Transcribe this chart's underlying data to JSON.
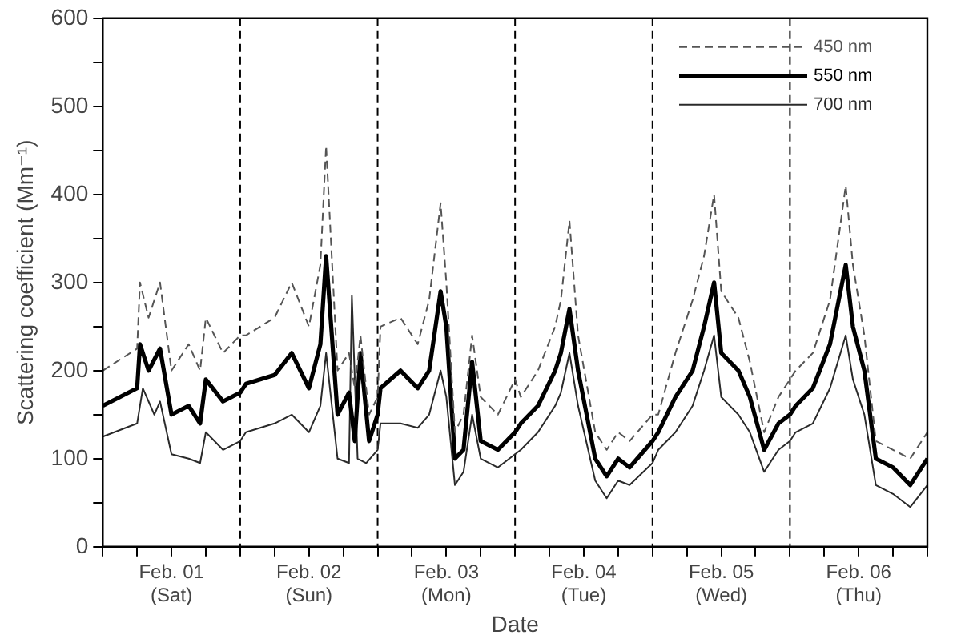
{
  "chart_data": {
    "type": "line",
    "xlabel": "Date",
    "ylabel": "Scattering coefficient (Mm⁻¹)",
    "xlim": [
      "--02-01T00:00",
      "--02-07T00:00"
    ],
    "ylim": [
      0,
      600
    ],
    "xticks": [
      {
        "value": "--02-01T00:00",
        "label": null
      },
      {
        "value": "--02-01T06:00",
        "label": null
      },
      {
        "value": "--02-01T12:00",
        "label": "Feb. 01\n(Sat)"
      },
      {
        "value": "--02-01T18:00",
        "label": null
      },
      {
        "value": "--02-02T00:00",
        "label": null
      },
      {
        "value": "--02-02T06:00",
        "label": null
      },
      {
        "value": "--02-02T12:00",
        "label": "Feb. 02\n(Sun)"
      },
      {
        "value": "--02-02T18:00",
        "label": null
      },
      {
        "value": "--02-03T00:00",
        "label": null
      },
      {
        "value": "--02-03T06:00",
        "label": null
      },
      {
        "value": "--02-03T12:00",
        "label": "Feb. 03\n(Mon)"
      },
      {
        "value": "--02-03T18:00",
        "label": null
      },
      {
        "value": "--02-04T00:00",
        "label": null
      },
      {
        "value": "--02-04T06:00",
        "label": null
      },
      {
        "value": "--02-04T12:00",
        "label": "Feb. 04\n(Tue)"
      },
      {
        "value": "--02-04T18:00",
        "label": null
      },
      {
        "value": "--02-05T00:00",
        "label": null
      },
      {
        "value": "--02-05T06:00",
        "label": null
      },
      {
        "value": "--02-05T12:00",
        "label": "Feb. 05\n(Wed)"
      },
      {
        "value": "--02-05T18:00",
        "label": null
      },
      {
        "value": "--02-06T00:00",
        "label": null
      },
      {
        "value": "--02-06T06:00",
        "label": null
      },
      {
        "value": "--02-06T12:00",
        "label": "Feb. 06\n(Thu)"
      },
      {
        "value": "--02-06T18:00",
        "label": null
      },
      {
        "value": "--02-07T00:00",
        "label": null
      }
    ],
    "yticks": [
      0,
      {
        "value": 50,
        "label": null
      },
      100,
      {
        "value": 150,
        "label": null
      },
      200,
      {
        "value": 250,
        "label": null
      },
      300,
      {
        "value": 350,
        "label": null
      },
      400,
      {
        "value": 450,
        "label": null
      },
      500,
      {
        "value": 550,
        "label": null
      },
      600
    ],
    "grid": false,
    "legend": "top right",
    "marker": "none",
    "ref_lines": [
      {
        "axis": "x",
        "value": "--02-02T00:00",
        "color": "#000000",
        "line_style": "dashed"
      },
      {
        "axis": "x",
        "value": "--02-03T00:00",
        "color": "#000000",
        "line_style": "dashed"
      },
      {
        "axis": "x",
        "value": "--02-04T00:00",
        "color": "#000000",
        "line_style": "dashed"
      },
      {
        "axis": "x",
        "value": "--02-05T00:00",
        "color": "#000000",
        "line_style": "dashed"
      },
      {
        "axis": "x",
        "value": "--02-06T00:00",
        "color": "#000000",
        "line_style": "dashed"
      }
    ],
    "x": [
      "--02-01T00:00",
      "--02-01T06:00",
      "--02-01T06:30",
      "--02-01T08:00",
      "--02-01T10:00",
      "--02-01T12:00",
      "--02-01T15:00",
      "--02-01T17:00",
      "--02-01T18:00",
      "--02-01T21:00",
      "--02-02T00:00",
      "--02-02T01:00",
      "--02-02T06:00",
      "--02-02T09:00",
      "--02-02T12:00",
      "--02-02T14:00",
      "--02-02T15:00",
      "--02-02T17:00",
      "--02-02T19:00",
      "--02-02T20:00",
      "--02-02T21:00",
      "--02-02T22:30",
      "--02-03T00:00",
      "--02-03T00:30",
      "--02-03T04:00",
      "--02-03T07:00",
      "--02-03T09:00",
      "--02-03T11:00",
      "--02-03T12:00",
      "--02-03T13:30",
      "--02-03T15:00",
      "--02-03T16:30",
      "--02-03T18:00",
      "--02-03T21:00",
      "--02-04T00:00",
      "--02-04T01:00",
      "--02-04T04:00",
      "--02-04T07:00",
      "--02-04T08:00",
      "--02-04T09:30",
      "--02-04T11:00",
      "--02-04T14:00",
      "--02-04T16:00",
      "--02-04T18:00",
      "--02-04T20:00",
      "--02-05T00:00",
      "--02-05T01:00",
      "--02-05T04:00",
      "--02-05T07:00",
      "--02-05T09:00",
      "--02-05T10:45",
      "--02-05T12:00",
      "--02-05T15:00",
      "--02-05T17:00",
      "--02-05T19:30",
      "--02-05T22:00",
      "--02-06T00:00",
      "--02-06T01:00",
      "--02-06T04:00",
      "--02-06T07:00",
      "--02-06T09:45",
      "--02-06T11:00",
      "--02-06T13:00",
      "--02-06T15:00",
      "--02-06T18:00",
      "--02-06T21:00",
      "--02-07T00:00"
    ],
    "series": [
      {
        "name": "450 nm",
        "color": "#555555",
        "line_style": "dashed",
        "values": [
          200,
          225,
          300,
          260,
          300,
          200,
          230,
          200,
          260,
          220,
          240,
          240,
          260,
          300,
          250,
          320,
          455,
          200,
          220,
          180,
          240,
          150,
          170,
          250,
          260,
          230,
          280,
          390,
          300,
          130,
          150,
          240,
          170,
          150,
          190,
          170,
          200,
          250,
          280,
          370,
          240,
          130,
          110,
          130,
          120,
          150,
          150,
          220,
          280,
          330,
          400,
          290,
          260,
          210,
          130,
          170,
          190,
          200,
          220,
          280,
          410,
          320,
          240,
          120,
          110,
          100,
          130
        ]
      },
      {
        "name": "550 nm",
        "color": "#000000",
        "line_style": "solid",
        "values": [
          160,
          180,
          230,
          200,
          225,
          150,
          160,
          140,
          190,
          165,
          175,
          185,
          195,
          220,
          180,
          230,
          330,
          150,
          175,
          120,
          220,
          120,
          150,
          180,
          200,
          180,
          200,
          290,
          250,
          100,
          110,
          210,
          120,
          110,
          130,
          140,
          160,
          200,
          220,
          270,
          200,
          100,
          80,
          100,
          90,
          120,
          130,
          170,
          200,
          250,
          300,
          220,
          200,
          170,
          110,
          140,
          150,
          160,
          180,
          230,
          320,
          250,
          200,
          100,
          90,
          70,
          100
        ]
      },
      {
        "name": "700 nm",
        "color": "#2a2a2a",
        "line_style": "solid",
        "x": [
          "--02-01T00:00",
          "--02-01T06:00",
          "--02-01T07:00",
          "--02-01T09:00",
          "--02-01T10:00",
          "--02-01T12:00",
          "--02-01T15:00",
          "--02-01T17:00",
          "--02-01T18:00",
          "--02-01T21:00",
          "--02-02T00:00",
          "--02-02T01:00",
          "--02-02T06:00",
          "--02-02T09:00",
          "--02-02T12:00",
          "--02-02T14:00",
          "--02-02T15:00",
          "--02-02T17:00",
          "--02-02T19:00",
          "--02-02T19:30",
          "--02-02T20:30",
          "--02-02T22:00",
          "--02-03T00:00",
          "--02-03T00:30",
          "--02-03T04:00",
          "--02-03T07:00",
          "--02-03T09:00",
          "--02-03T11:00",
          "--02-03T12:00",
          "--02-03T13:30",
          "--02-03T15:00",
          "--02-03T16:30",
          "--02-03T18:00",
          "--02-03T21:00",
          "--02-04T00:00",
          "--02-04T01:00",
          "--02-04T04:00",
          "--02-04T07:00",
          "--02-04T08:00",
          "--02-04T09:30",
          "--02-04T11:00",
          "--02-04T14:00",
          "--02-04T16:00",
          "--02-04T18:00",
          "--02-04T20:00",
          "--02-05T00:00",
          "--02-05T01:00",
          "--02-05T04:00",
          "--02-05T07:00",
          "--02-05T09:00",
          "--02-05T10:45",
          "--02-05T12:00",
          "--02-05T15:00",
          "--02-05T17:00",
          "--02-05T19:30",
          "--02-05T22:00",
          "--02-06T00:00",
          "--02-06T01:00",
          "--02-06T04:00",
          "--02-06T07:00",
          "--02-06T09:45",
          "--02-06T11:00",
          "--02-06T13:00",
          "--02-06T15:00",
          "--02-06T18:00",
          "--02-06T21:00",
          "--02-07T00:00"
        ],
        "values": [
          125,
          140,
          180,
          150,
          165,
          105,
          100,
          95,
          130,
          110,
          120,
          130,
          140,
          150,
          130,
          160,
          220,
          100,
          95,
          285,
          100,
          95,
          110,
          140,
          140,
          135,
          150,
          200,
          170,
          70,
          85,
          150,
          100,
          90,
          105,
          110,
          130,
          160,
          175,
          220,
          160,
          75,
          55,
          75,
          70,
          95,
          110,
          130,
          160,
          200,
          240,
          170,
          150,
          130,
          85,
          110,
          120,
          130,
          140,
          180,
          240,
          190,
          150,
          70,
          60,
          45,
          70
        ]
      }
    ]
  }
}
